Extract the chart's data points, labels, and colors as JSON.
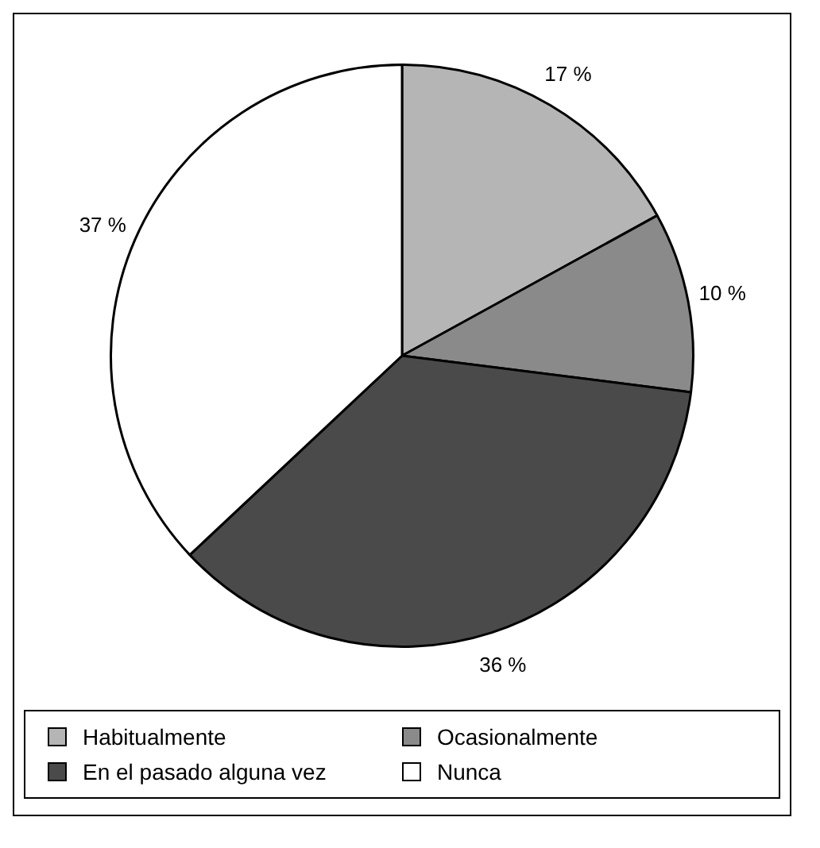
{
  "chart_data": {
    "type": "pie",
    "categories": [
      "Habitualmente",
      "Ocasionalmente",
      "En el pasado alguna vez",
      "Nunca"
    ],
    "values": [
      17,
      10,
      36,
      37
    ],
    "colors": [
      "#b5b5b5",
      "#8a8a8a",
      "#4a4a4a",
      "#ffffff"
    ],
    "value_labels": [
      "17 %",
      "10 %",
      "36 %",
      "37 %"
    ],
    "legend": "bottom"
  }
}
